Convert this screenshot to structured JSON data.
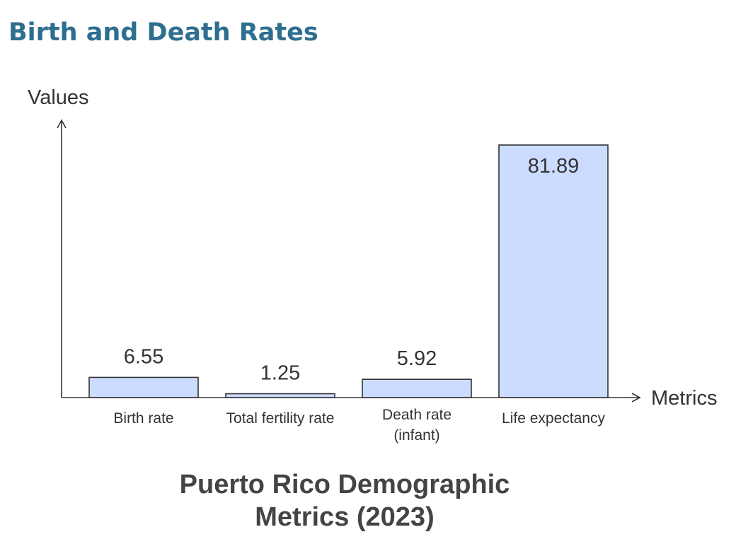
{
  "page": {
    "heading": "Birth and Death Rates"
  },
  "colors": {
    "heading": "#2e6e8e",
    "bar_fill": "#ccdcff",
    "bar_stroke": "#333333",
    "text": "#333333"
  },
  "chart_data": {
    "type": "bar",
    "title_lines": [
      "Puerto Rico Demographic",
      "Metrics (2023)"
    ],
    "xlabel": "Metrics",
    "ylabel": "Values",
    "categories": [
      [
        "Birth rate"
      ],
      [
        "Total fertility rate"
      ],
      [
        "Death rate",
        "(infant)"
      ],
      [
        "Life expectancy"
      ]
    ],
    "values": [
      6.55,
      1.25,
      5.92,
      81.89
    ],
    "value_labels": [
      "6.55",
      "1.25",
      "5.92",
      "81.89"
    ],
    "ylim": [
      0,
      100
    ],
    "grid": false,
    "legend": "none"
  }
}
